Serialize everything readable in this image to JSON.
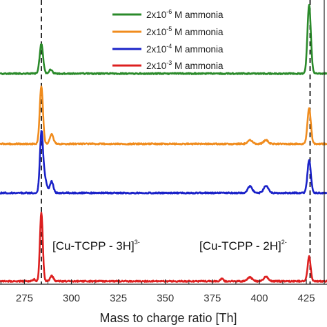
{
  "chart_data": {
    "type": "line",
    "xlabel": "Mass to charge ratio [Th]",
    "ylabel": "",
    "xlim": [
      262,
      436
    ],
    "x_ticks": [
      275,
      300,
      325,
      350,
      375,
      400,
      425
    ],
    "grid": false,
    "legend_position": "top-right",
    "series": [
      {
        "name": "2x10-6 M ammonia",
        "label_base": "2x10",
        "label_exp": "-6",
        "label_rest": " M ammonia",
        "color": "#2a8a2a",
        "baseline": 0.775,
        "peaks": [
          {
            "x": 284,
            "h": 0.09,
            "w": 0.9
          },
          {
            "x": 289,
            "h": 0.012,
            "w": 0.9
          },
          {
            "x": 426.5,
            "h": 0.21,
            "w": 0.9
          }
        ]
      },
      {
        "name": "2x10-5 M ammonia",
        "label_base": "2x10",
        "label_exp": "-5",
        "label_rest": " M ammonia",
        "color": "#f08c1e",
        "baseline": 0.56,
        "peaks": [
          {
            "x": 284,
            "h": 0.175,
            "w": 0.85
          },
          {
            "x": 289.5,
            "h": 0.03,
            "w": 0.9
          },
          {
            "x": 395,
            "h": 0.012,
            "w": 1.2
          },
          {
            "x": 403.5,
            "h": 0.012,
            "w": 1.2
          },
          {
            "x": 426.5,
            "h": 0.11,
            "w": 0.9
          }
        ]
      },
      {
        "name": "2x10-4 M ammonia",
        "label_base": "2x10",
        "label_exp": "-4",
        "label_rest": " M ammonia",
        "color": "#1a22c8",
        "baseline": 0.41,
        "peaks": [
          {
            "x": 284,
            "h": 0.165,
            "w": 0.8
          },
          {
            "x": 285.5,
            "h": 0.05,
            "w": 1.2
          },
          {
            "x": 289.5,
            "h": 0.035,
            "w": 0.9
          },
          {
            "x": 395,
            "h": 0.02,
            "w": 1.2
          },
          {
            "x": 403.5,
            "h": 0.022,
            "w": 1.2
          },
          {
            "x": 426.5,
            "h": 0.1,
            "w": 0.9
          }
        ]
      },
      {
        "name": "2x10-3 M ammonia",
        "label_base": "2x10",
        "label_exp": "-3",
        "label_rest": " M ammonia",
        "color": "#dd1f1f",
        "baseline": 0.14,
        "peaks": [
          {
            "x": 284,
            "h": 0.21,
            "w": 0.75
          },
          {
            "x": 280,
            "h": 0.006,
            "w": 0.6
          },
          {
            "x": 289.5,
            "h": 0.016,
            "w": 0.9
          },
          {
            "x": 380,
            "h": 0.008,
            "w": 0.7
          },
          {
            "x": 395,
            "h": 0.012,
            "w": 1.2
          },
          {
            "x": 403.5,
            "h": 0.014,
            "w": 1.2
          },
          {
            "x": 426.5,
            "h": 0.075,
            "w": 0.8
          }
        ]
      }
    ],
    "reference_lines": [
      284,
      427
    ],
    "annotations": [
      {
        "base": "[Cu-TCPP - 3H]",
        "sup": "3-"
      },
      {
        "base": "[Cu-TCPP - 2H]",
        "sup": "2-"
      }
    ]
  }
}
